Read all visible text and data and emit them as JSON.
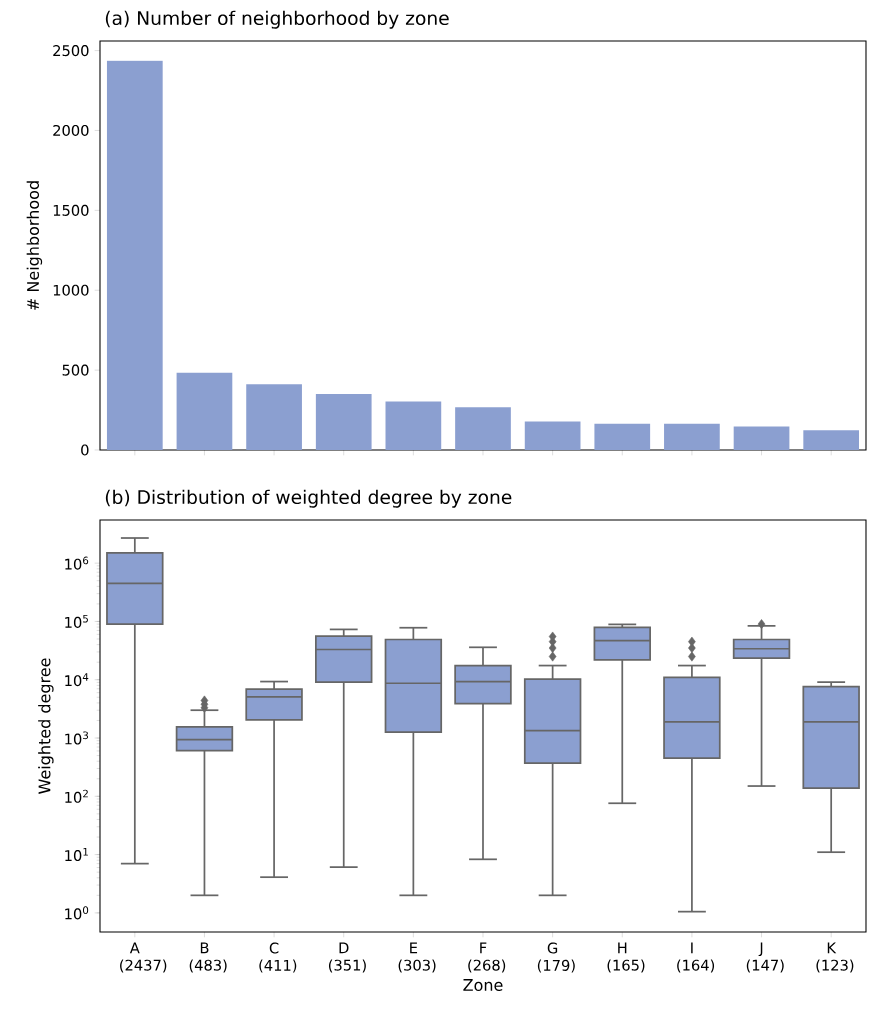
{
  "chart_data": [
    {
      "type": "bar",
      "title": "(a) Number of neighborhood by zone",
      "ylabel": "# Neighborhood",
      "categories": [
        null,
        null,
        null,
        null,
        null,
        null,
        null,
        null,
        null,
        null,
        null
      ],
      "values": [
        2437,
        483,
        411,
        351,
        303,
        268,
        179,
        165,
        164,
        147,
        123
      ],
      "color": "#8b9fd0",
      "ylim": [
        0,
        2560
      ],
      "yticks": [
        0,
        500,
        1000,
        1500,
        2000,
        2500
      ],
      "tick_labels": "y"
    },
    {
      "type": "box",
      "title": "(b) Distribution of weighted degree by zone",
      "xlabel": "Zone",
      "ylabel": "Weighted degree",
      "categories": [
        "A (2437)",
        "B (483)",
        "C (411)",
        "D (351)",
        "E (303)",
        "F (268)",
        "G (179)",
        "H (165)",
        "I (164)",
        "J (147)",
        "K (123)"
      ],
      "color": "#8b9fd0",
      "log": "y",
      "ylim": [
        0.47,
        5500000
      ],
      "yticks": [
        {
          "value": 1,
          "label": "10$^{0}$"
        },
        {
          "value": 10,
          "label": "10$^{1}$"
        },
        {
          "value": 100,
          "label": "10$^{2}$"
        },
        {
          "value": 1000,
          "label": "10$^{3}$"
        },
        {
          "value": 10000,
          "label": "10$^{4}$"
        },
        {
          "value": 100000,
          "label": "10$^{5}$"
        },
        {
          "value": 1000000,
          "label": "10$^{6}$"
        }
      ],
      "boxes": [
        {
          "low": 7,
          "q1": 90000,
          "median": 450000,
          "q3": 1500000,
          "high": 2700000
        },
        {
          "low": 2,
          "q1": 610,
          "median": 940,
          "q3": 1550,
          "high": 3000,
          "outliers": [
            3300,
            3800,
            4400
          ]
        },
        {
          "low": 4.1,
          "q1": 2050,
          "median": 5100,
          "q3": 6900,
          "high": 9300
        },
        {
          "low": 6.1,
          "q1": 9100,
          "median": 33000,
          "q3": 56000,
          "high": 73000
        },
        {
          "low": 2,
          "q1": 1260,
          "median": 8700,
          "q3": 49000,
          "high": 78000
        },
        {
          "low": 8.3,
          "q1": 3900,
          "median": 9300,
          "q3": 17500,
          "high": 36000
        },
        {
          "low": 2,
          "q1": 370,
          "median": 1340,
          "q3": 10200,
          "high": 17500,
          "outliers": [
            25000,
            35000,
            45000,
            55000
          ]
        },
        {
          "low": 76,
          "q1": 22000,
          "median": 47000,
          "q3": 79000,
          "high": 89000
        },
        {
          "low": 1.05,
          "q1": 450,
          "median": 1900,
          "q3": 11000,
          "high": 17500,
          "outliers": [
            25000,
            35000,
            45000
          ]
        },
        {
          "low": 150,
          "q1": 23500,
          "median": 34000,
          "q3": 49000,
          "high": 84000,
          "outliers": [
            90000
          ]
        },
        {
          "low": 11,
          "q1": 138,
          "median": 1900,
          "q3": 7600,
          "high": 9100
        }
      ]
    }
  ]
}
